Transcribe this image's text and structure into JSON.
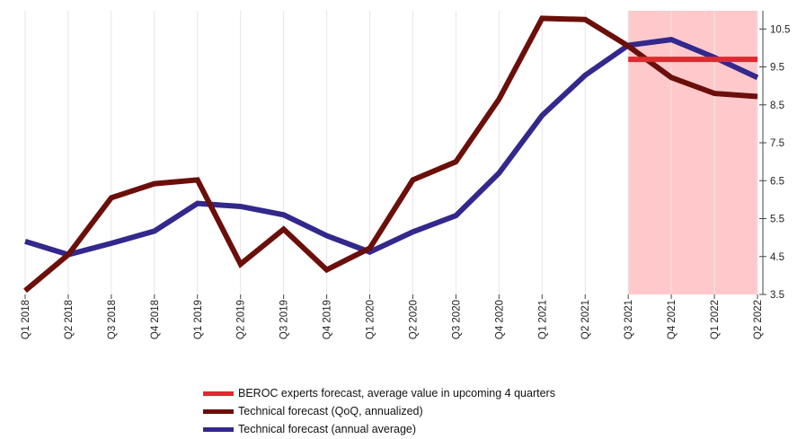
{
  "chart_data": {
    "type": "line",
    "categories": [
      "Q1 2018",
      "Q2 2018",
      "Q3 2018",
      "Q4 2018",
      "Q1 2019",
      "Q2 2019",
      "Q3 2019",
      "Q4 2019",
      "Q1 2020",
      "Q2 2020",
      "Q3 2020",
      "Q4 2020",
      "Q1 2021",
      "Q2 2021",
      "Q3 2021",
      "Q4 2021",
      "Q1 2022",
      "Q2 2022"
    ],
    "ylim": [
      3.5,
      11.0
    ],
    "yticks": [
      "3.5",
      "4.5",
      "5.5",
      "6.5",
      "7.5",
      "8.5",
      "9.5",
      "10.5"
    ],
    "grid": true,
    "y_axis_position": "right",
    "legend_position": "bottom",
    "forecast_shaded_region": {
      "from": "Q3 2021",
      "to": "Q2 2022",
      "color": "#ffc9cc"
    },
    "series": [
      {
        "name": "BEROC experts forecast, average value in upcoming 4 quarters",
        "color": "#e0292f",
        "x": [
          "Q3 2021",
          "Q2 2022"
        ],
        "values": [
          9.7,
          9.7
        ]
      },
      {
        "name": "Technical forecast  (QoQ, annualized)",
        "color": "#6b0f0a",
        "x": [
          "Q1 2018",
          "Q2 2018",
          "Q3 2018",
          "Q4 2018",
          "Q1 2019",
          "Q2 2019",
          "Q3 2019",
          "Q4 2019",
          "Q1 2020",
          "Q2 2020",
          "Q3 2020",
          "Q4 2020",
          "Q1 2021",
          "Q2 2021",
          "Q3 2021",
          "Q4 2021",
          "Q1 2022",
          "Q2 2022"
        ],
        "values": [
          3.6,
          4.55,
          6.05,
          6.42,
          6.52,
          4.3,
          5.22,
          4.15,
          4.72,
          6.52,
          7.0,
          8.65,
          10.78,
          10.75,
          10.05,
          9.22,
          8.8,
          8.72
        ]
      },
      {
        "name": "Technical forecast (annual average)",
        "color": "#33288c",
        "x": [
          "Q1 2018",
          "Q2 2018",
          "Q3 2018",
          "Q4 2018",
          "Q1 2019",
          "Q2 2019",
          "Q3 2019",
          "Q4 2019",
          "Q1 2020",
          "Q2 2020",
          "Q3 2020",
          "Q4 2020",
          "Q1 2021",
          "Q2 2021",
          "Q3 2021",
          "Q4 2021",
          "Q1 2022",
          "Q2 2022"
        ],
        "values": [
          4.9,
          4.55,
          4.85,
          5.17,
          5.9,
          5.82,
          5.6,
          5.05,
          4.62,
          5.15,
          5.58,
          6.7,
          8.22,
          9.28,
          10.07,
          10.22,
          9.75,
          9.22
        ]
      }
    ]
  }
}
